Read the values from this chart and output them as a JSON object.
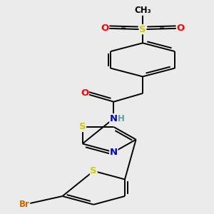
{
  "bg_color": "#ebebeb",
  "atom_colors": {
    "C": "#000000",
    "N": "#0000cc",
    "O": "#ff0000",
    "S": "#cccc00",
    "Br": "#cc6600",
    "H": "#5f9ea0"
  },
  "bond_color": "#000000",
  "bond_width": 1.4,
  "font_size": 8.5
}
